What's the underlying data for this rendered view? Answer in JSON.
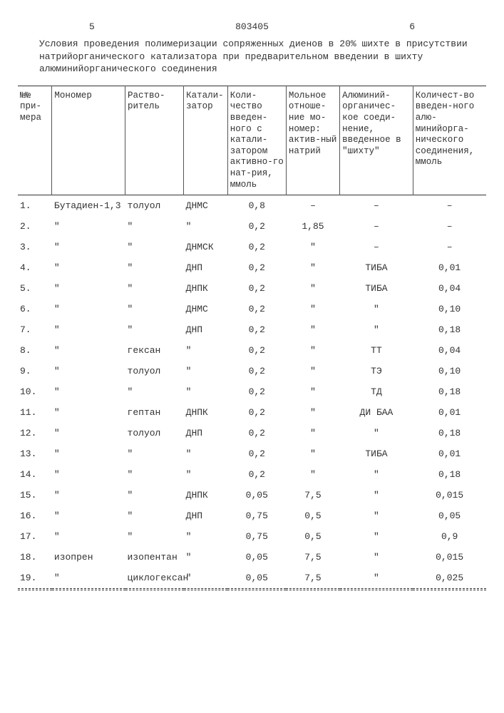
{
  "header": {
    "left_num": "5",
    "doc_num": "803405",
    "right_num": "6"
  },
  "caption": "Условия проведения полимеризации сопряженных диенов в 20% шихте в присутствии натрийорганического катализатора при предварительном введении в шихту алюминийорганического соединения",
  "columns": [
    "№№ при-мера",
    "Мономер",
    "Раство-ритель",
    "Катали-затор",
    "Коли-чество введен-ного с катали-затором активно-го нат-рия, ммоль",
    "Мольное отноше-ние мо-номер: актив-ный натрий",
    "Алюминий-органичес-кое соеди-нение, введенное в \"шихту\"",
    "Количест-во введен-ного алю-минийорга-нического соединения, ммоль"
  ],
  "rows": [
    [
      "1.",
      "Бутадиен-1,3",
      "толуол",
      "ДНМС",
      "0,8",
      "–",
      "–",
      "–"
    ],
    [
      "2.",
      "\"",
      "\"",
      "\"",
      "0,2",
      "1,85",
      "–",
      "–"
    ],
    [
      "3.",
      "\"",
      "\"",
      "ДНМСК",
      "0,2",
      "\"",
      "–",
      "–"
    ],
    [
      "4.",
      "\"",
      "\"",
      "ДНП",
      "0,2",
      "\"",
      "ТИБА",
      "0,01"
    ],
    [
      "5.",
      "\"",
      "\"",
      "ДНПК",
      "0,2",
      "\"",
      "ТИБА",
      "0,04"
    ],
    [
      "6.",
      "\"",
      "\"",
      "ДНМС",
      "0,2",
      "\"",
      "\"",
      "0,10"
    ],
    [
      "7.",
      "\"",
      "\"",
      "ДНП",
      "0,2",
      "\"",
      "\"",
      "0,18"
    ],
    [
      "8.",
      "\"",
      "гексан",
      "\"",
      "0,2",
      "\"",
      "ТТ",
      "0,04"
    ],
    [
      "9.",
      "\"",
      "толуол",
      "\"",
      "0,2",
      "\"",
      "ТЭ",
      "0,10"
    ],
    [
      "10.",
      "\"",
      "\"",
      "\"",
      "0,2",
      "\"",
      "ТД",
      "0,18"
    ],
    [
      "11.",
      "\"",
      "гептан",
      "ДНПК",
      "0,2",
      "\"",
      "ДИ БАА",
      "0,01"
    ],
    [
      "12.",
      "\"",
      "толуол",
      "ДНП",
      "0,2",
      "\"",
      "\"",
      "0,18"
    ],
    [
      "13.",
      "\"",
      "\"",
      "\"",
      "0,2",
      "\"",
      "ТИБА",
      "0,01"
    ],
    [
      "14.",
      "\"",
      "\"",
      "\"",
      "0,2",
      "\"",
      "\"",
      "0,18"
    ],
    [
      "15.",
      "\"",
      "\"",
      "ДНПК",
      "0,05",
      "7,5",
      "\"",
      "0,015"
    ],
    [
      "16.",
      "\"",
      "\"",
      "ДНП",
      "0,75",
      "0,5",
      "\"",
      "0,05"
    ],
    [
      "17.",
      "\"",
      "\"",
      "\"",
      "0,75",
      "0,5",
      "\"",
      "0,9"
    ],
    [
      "18.",
      "изопрен",
      "изопентан",
      "\"",
      "0,05",
      "7,5",
      "\"",
      "0,015"
    ],
    [
      "19.",
      "\"",
      "циклогексан",
      "\"",
      "0,05",
      "7,5",
      "\"",
      "0,025"
    ]
  ]
}
